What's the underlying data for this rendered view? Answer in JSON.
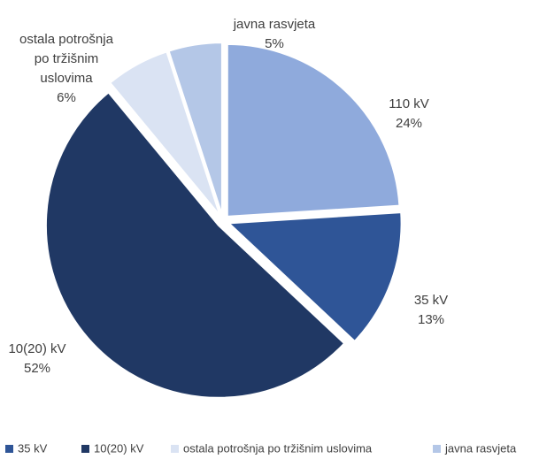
{
  "chart_data": {
    "type": "pie",
    "categories": [
      "110 kV",
      "35 kV",
      "10(20) kV",
      "ostala potrošnja po tržišnim uslovima",
      "javna rasvjeta"
    ],
    "values": [
      24,
      13,
      52,
      6,
      5
    ],
    "value_labels": [
      "24%",
      "13%",
      "52%",
      "6%",
      "5%"
    ],
    "colors": [
      "#8faadc",
      "#2f5597",
      "#203864",
      "#dae3f3",
      "#b4c7e7"
    ]
  }
}
